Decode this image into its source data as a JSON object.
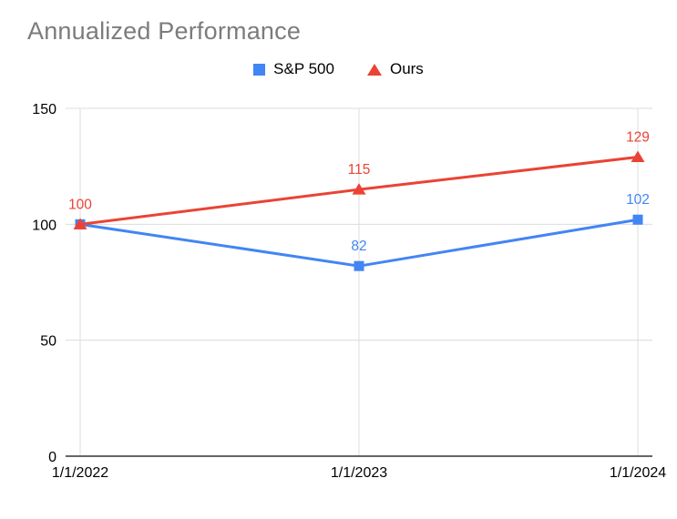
{
  "chart_data": {
    "type": "line",
    "title": "Annualized Performance",
    "categories": [
      "1/1/2022",
      "1/1/2023",
      "1/1/2024"
    ],
    "series": [
      {
        "name": "S&P 500",
        "color": "#4285F4",
        "marker": "square",
        "values": [
          100,
          82,
          102
        ],
        "label_visible": [
          false,
          true,
          true
        ]
      },
      {
        "name": "Ours",
        "color": "#EA4335",
        "marker": "triangle",
        "values": [
          100,
          115,
          129
        ],
        "label_visible": [
          true,
          true,
          true
        ]
      }
    ],
    "xlabel": "",
    "ylabel": "",
    "ylim": [
      0,
      150
    ],
    "yticks": [
      0,
      50,
      100,
      150
    ],
    "grid": true,
    "legend_position": "top-center",
    "colors": {
      "title": "#7c7c7c",
      "axis_text": "#000000",
      "gridline": "#dcdcdc",
      "axis_line": "#333333",
      "background": "#ffffff"
    }
  }
}
